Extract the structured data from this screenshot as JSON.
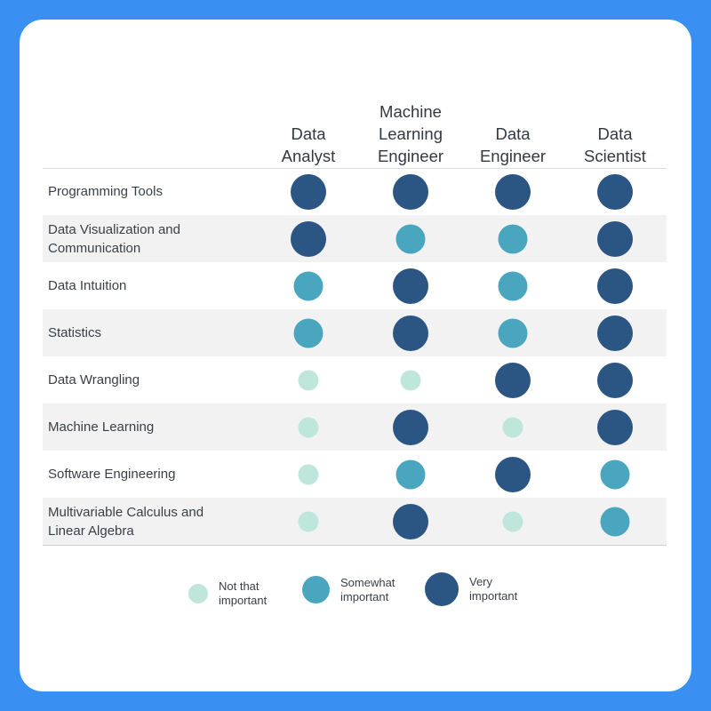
{
  "colors": {
    "background": "#3a8ff2",
    "card": "#ffffff",
    "not_that_important": "#bfe6db",
    "somewhat_important": "#4aa6be",
    "very_important": "#2b5583",
    "row_shade": "#f2f2f2"
  },
  "chart_data": {
    "type": "table",
    "columns": [
      "Data\nAnalyst",
      "Machine\nLearning\nEngineer",
      "Data\nEngineer",
      "Data\nScientist"
    ],
    "rows": [
      "Programming Tools",
      "Data Visualization and\nCommunication",
      "Data Intuition",
      "Statistics",
      "Data Wrangling",
      "Machine Learning",
      "Software Engineering",
      "Multivariable Calculus and\nLinear Algebra"
    ],
    "levels": [
      [
        3,
        3,
        3,
        3
      ],
      [
        3,
        2,
        2,
        3
      ],
      [
        2,
        3,
        2,
        3
      ],
      [
        2,
        3,
        2,
        3
      ],
      [
        1,
        1,
        3,
        3
      ],
      [
        1,
        3,
        1,
        3
      ],
      [
        1,
        2,
        3,
        2
      ],
      [
        1,
        3,
        1,
        2
      ]
    ],
    "legend": [
      {
        "level": 1,
        "label": "Not that\nimportant"
      },
      {
        "level": 2,
        "label": "Somewhat\nimportant"
      },
      {
        "level": 3,
        "label": "Very\nimportant"
      }
    ]
  }
}
